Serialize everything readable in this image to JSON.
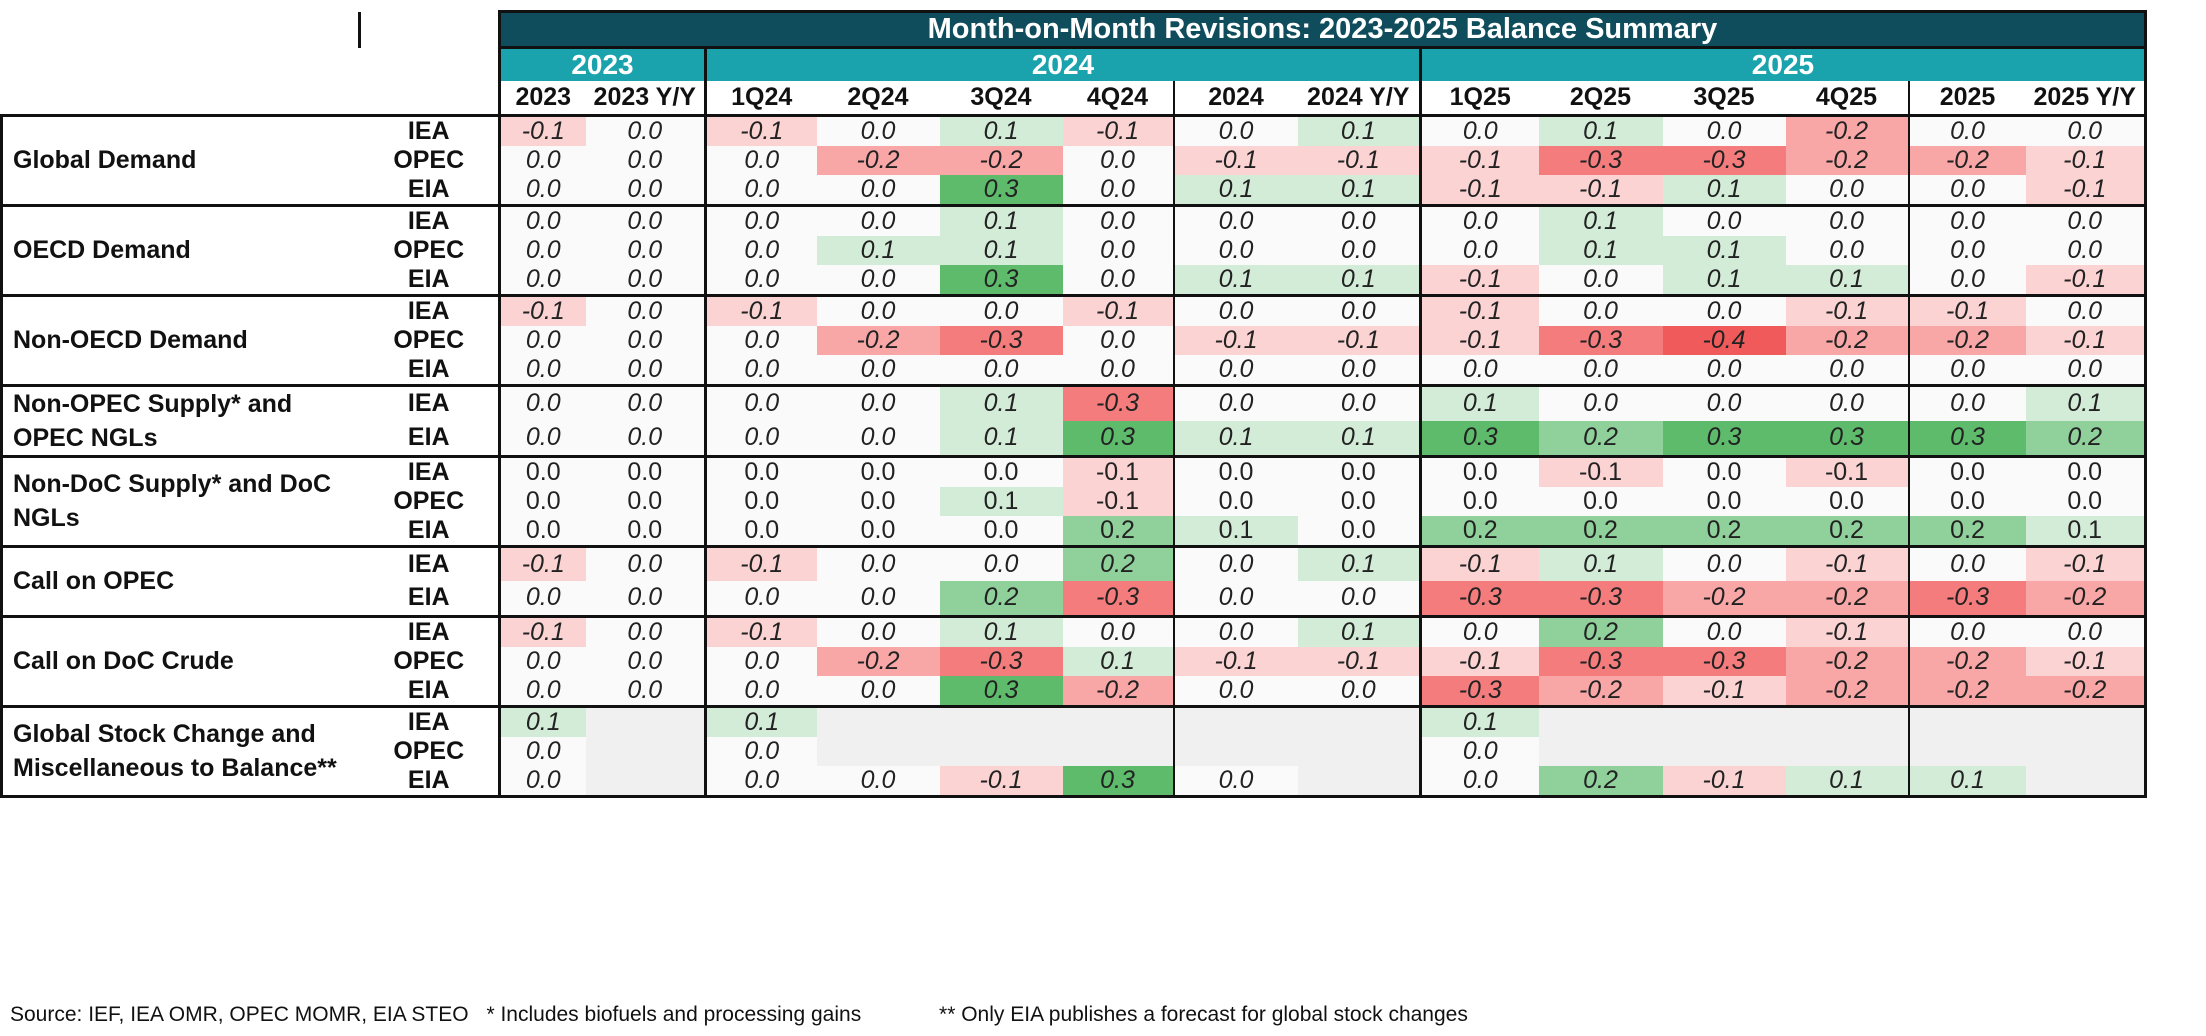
{
  "title": "Month-on-Month Revisions: 2023-2025 Balance Summary",
  "year_groups": [
    {
      "label": "2023",
      "span": 2
    },
    {
      "label": "2024",
      "span": 6
    },
    {
      "label": "2025",
      "span": 6
    }
  ],
  "columns": [
    "2023",
    "2023 Y/Y",
    "1Q24",
    "2Q24",
    "3Q24",
    "4Q24",
    "2024",
    "2024 Y/Y",
    "1Q25",
    "2Q25",
    "3Q25",
    "4Q25",
    "2025",
    "2025 Y/Y"
  ],
  "colors": {
    "title_bg": "#0f4c5c",
    "year_bg": "#1aa3ad",
    "positive": "#4caf5f",
    "negative": "#f25c5c",
    "empty": "#f0f0f0"
  },
  "chart_data": {
    "type": "table",
    "title": "Month-on-Month Revisions: 2023-2025 Balance Summary",
    "groups": [
      {
        "label": "Global Demand",
        "rows": [
          {
            "source": "IEA",
            "values": [
              "-0.1",
              "0.0",
              "-0.1",
              "0.0",
              "0.1",
              "-0.1",
              "0.0",
              "0.1",
              "0.0",
              "0.1",
              "0.0",
              "-0.2",
              "0.0",
              "0.0"
            ]
          },
          {
            "source": "OPEC",
            "values": [
              "0.0",
              "0.0",
              "0.0",
              "-0.2",
              "-0.2",
              "0.0",
              "-0.1",
              "-0.1",
              "-0.1",
              "-0.3",
              "-0.3",
              "-0.2",
              "-0.2",
              "-0.1"
            ]
          },
          {
            "source": "EIA",
            "values": [
              "0.0",
              "0.0",
              "0.0",
              "0.0",
              "0.3",
              "0.0",
              "0.1",
              "0.1",
              "-0.1",
              "-0.1",
              "0.1",
              "0.0",
              "0.0",
              "-0.1"
            ]
          }
        ]
      },
      {
        "label": "OECD Demand",
        "rows": [
          {
            "source": "IEA",
            "values": [
              "0.0",
              "0.0",
              "0.0",
              "0.0",
              "0.1",
              "0.0",
              "0.0",
              "0.0",
              "0.0",
              "0.1",
              "0.0",
              "0.0",
              "0.0",
              "0.0"
            ]
          },
          {
            "source": "OPEC",
            "values": [
              "0.0",
              "0.0",
              "0.0",
              "0.1",
              "0.1",
              "0.0",
              "0.0",
              "0.0",
              "0.0",
              "0.1",
              "0.1",
              "0.0",
              "0.0",
              "0.0"
            ]
          },
          {
            "source": "EIA",
            "values": [
              "0.0",
              "0.0",
              "0.0",
              "0.0",
              "0.3",
              "0.0",
              "0.1",
              "0.1",
              "-0.1",
              "0.0",
              "0.1",
              "0.1",
              "0.0",
              "-0.1"
            ]
          }
        ]
      },
      {
        "label": "Non-OECD Demand",
        "rows": [
          {
            "source": "IEA",
            "values": [
              "-0.1",
              "0.0",
              "-0.1",
              "0.0",
              "0.0",
              "-0.1",
              "0.0",
              "0.0",
              "-0.1",
              "0.0",
              "0.0",
              "-0.1",
              "-0.1",
              "0.0"
            ]
          },
          {
            "source": "OPEC",
            "values": [
              "0.0",
              "0.0",
              "0.0",
              "-0.2",
              "-0.3",
              "0.0",
              "-0.1",
              "-0.1",
              "-0.1",
              "-0.3",
              "-0.4",
              "-0.2",
              "-0.2",
              "-0.1"
            ]
          },
          {
            "source": "EIA",
            "values": [
              "0.0",
              "0.0",
              "0.0",
              "0.0",
              "0.0",
              "0.0",
              "0.0",
              "0.0",
              "0.0",
              "0.0",
              "0.0",
              "0.0",
              "0.0",
              "0.0"
            ]
          }
        ]
      },
      {
        "label": "Non-OPEC Supply* and OPEC NGLs",
        "rows": [
          {
            "source": "IEA",
            "values": [
              "0.0",
              "0.0",
              "0.0",
              "0.0",
              "0.1",
              "-0.3",
              "0.0",
              "0.0",
              "0.1",
              "0.0",
              "0.0",
              "0.0",
              "0.0",
              "0.1"
            ]
          },
          {
            "source": "EIA",
            "values": [
              "0.0",
              "0.0",
              "0.0",
              "0.0",
              "0.1",
              "0.3",
              "0.1",
              "0.1",
              "0.3",
              "0.2",
              "0.3",
              "0.3",
              "0.3",
              "0.2"
            ]
          }
        ]
      },
      {
        "label": "Non-DoC Supply* and DoC NGLs",
        "upright": true,
        "rows": [
          {
            "source": "IEA",
            "values": [
              "0.0",
              "0.0",
              "0.0",
              "0.0",
              "0.0",
              "-0.1",
              "0.0",
              "0.0",
              "0.0",
              "-0.1",
              "0.0",
              "-0.1",
              "0.0",
              "0.0"
            ]
          },
          {
            "source": "OPEC",
            "values": [
              "0.0",
              "0.0",
              "0.0",
              "0.0",
              "0.1",
              "-0.1",
              "0.0",
              "0.0",
              "0.0",
              "0.0",
              "0.0",
              "0.0",
              "0.0",
              "0.0"
            ]
          },
          {
            "source": "EIA",
            "values": [
              "0.0",
              "0.0",
              "0.0",
              "0.0",
              "0.0",
              "0.2",
              "0.1",
              "0.0",
              "0.2",
              "0.2",
              "0.2",
              "0.2",
              "0.2",
              "0.1"
            ]
          }
        ]
      },
      {
        "label": "Call on OPEC",
        "rows": [
          {
            "source": "IEA",
            "values": [
              "-0.1",
              "0.0",
              "-0.1",
              "0.0",
              "0.0",
              "0.2",
              "0.0",
              "0.1",
              "-0.1",
              "0.1",
              "0.0",
              "-0.1",
              "0.0",
              "-0.1"
            ]
          },
          {
            "source": "EIA",
            "values": [
              "0.0",
              "0.0",
              "0.0",
              "0.0",
              "0.2",
              "-0.3",
              "0.0",
              "0.0",
              "-0.3",
              "-0.3",
              "-0.2",
              "-0.2",
              "-0.3",
              "-0.2"
            ]
          }
        ]
      },
      {
        "label": "Call on DoC Crude",
        "rows": [
          {
            "source": "IEA",
            "values": [
              "-0.1",
              "0.0",
              "-0.1",
              "0.0",
              "0.1",
              "0.0",
              "0.0",
              "0.1",
              "0.0",
              "0.2",
              "0.0",
              "-0.1",
              "0.0",
              "0.0"
            ]
          },
          {
            "source": "OPEC",
            "values": [
              "0.0",
              "0.0",
              "0.0",
              "-0.2",
              "-0.3",
              "0.1",
              "-0.1",
              "-0.1",
              "-0.1",
              "-0.3",
              "-0.3",
              "-0.2",
              "-0.2",
              "-0.1"
            ]
          },
          {
            "source": "EIA",
            "values": [
              "0.0",
              "0.0",
              "0.0",
              "0.0",
              "0.3",
              "-0.2",
              "0.0",
              "0.0",
              "-0.3",
              "-0.2",
              "-0.1",
              "-0.2",
              "-0.2",
              "-0.2"
            ]
          }
        ]
      },
      {
        "label": "Global Stock Change and Miscellaneous to Balance**",
        "rows": [
          {
            "source": "IEA",
            "values": [
              "0.1",
              null,
              "0.1",
              null,
              null,
              null,
              null,
              null,
              "0.1",
              null,
              null,
              null,
              null,
              null
            ]
          },
          {
            "source": "OPEC",
            "values": [
              "0.0",
              null,
              "0.0",
              null,
              null,
              null,
              null,
              null,
              "0.0",
              null,
              null,
              null,
              null,
              null
            ]
          },
          {
            "source": "EIA",
            "values": [
              "0.0",
              null,
              "0.0",
              "0.0",
              "-0.1",
              "0.3",
              "0.0",
              null,
              "0.0",
              "0.2",
              "-0.1",
              "0.1",
              "0.1",
              null
            ]
          }
        ]
      }
    ]
  },
  "footer": {
    "source": "Source: IEF, IEA OMR, OPEC MOMR, EIA STEO",
    "note1": "* Includes biofuels and processing gains",
    "note2": "** Only EIA publishes a forecast for global stock changes"
  }
}
